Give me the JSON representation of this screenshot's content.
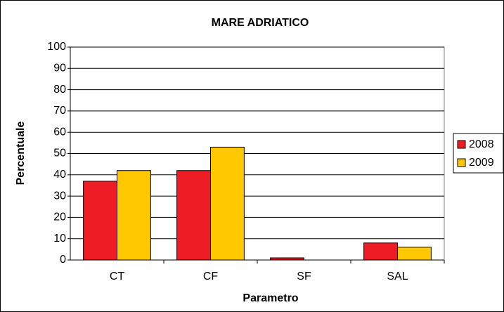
{
  "chart_data": {
    "type": "bar",
    "title": "MARE ADRIATICO",
    "x_label": "Parametro",
    "y_label": "Percentuale",
    "categories": [
      "CT",
      "CF",
      "SF",
      "SAL"
    ],
    "series": [
      {
        "name": "2008",
        "color": "#ee1c25",
        "values": [
          37,
          42,
          1,
          8
        ]
      },
      {
        "name": "2009",
        "color": "#ffc800",
        "values": [
          42,
          53,
          0,
          6
        ]
      }
    ],
    "ylim": [
      0,
      100
    ],
    "yticks": [
      0,
      10,
      20,
      30,
      40,
      50,
      60,
      70,
      80,
      90,
      100
    ],
    "grid": true,
    "legend": "right"
  }
}
